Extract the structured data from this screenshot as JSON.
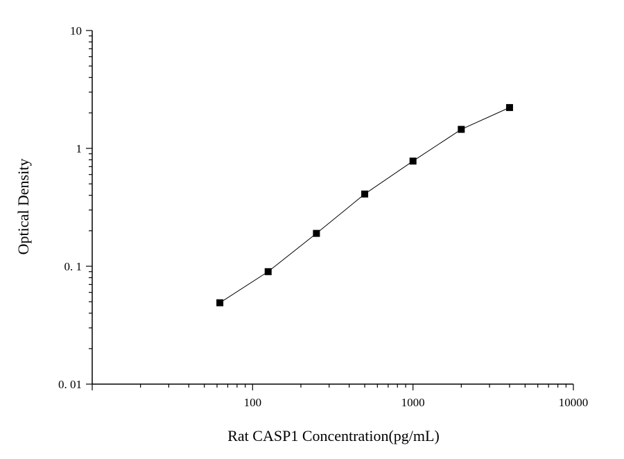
{
  "chart_data": {
    "type": "scatter",
    "title": "",
    "xlabel": "Rat CASP1 Concentration(pg/mL)",
    "ylabel": "Optical Density",
    "xscale": "log",
    "yscale": "log",
    "xlim": [
      10,
      10000
    ],
    "ylim": [
      0.01,
      10
    ],
    "x_ticks": [
      100,
      1000,
      10000
    ],
    "x_tick_labels": [
      "100",
      "1000",
      "10000"
    ],
    "y_ticks": [
      0.01,
      0.1,
      1,
      10
    ],
    "y_tick_labels": [
      "0. 01",
      "0. 1",
      "1",
      "10"
    ],
    "grid": false,
    "legend": "none",
    "connect_points": true,
    "marker": "square",
    "marker_color": "#000000",
    "line_color": "#000000",
    "series": [
      {
        "x": [
          62.5,
          125,
          250,
          500,
          1000,
          2000,
          4000
        ],
        "y": [
          0.049,
          0.09,
          0.19,
          0.41,
          0.78,
          1.45,
          2.22
        ]
      }
    ]
  }
}
